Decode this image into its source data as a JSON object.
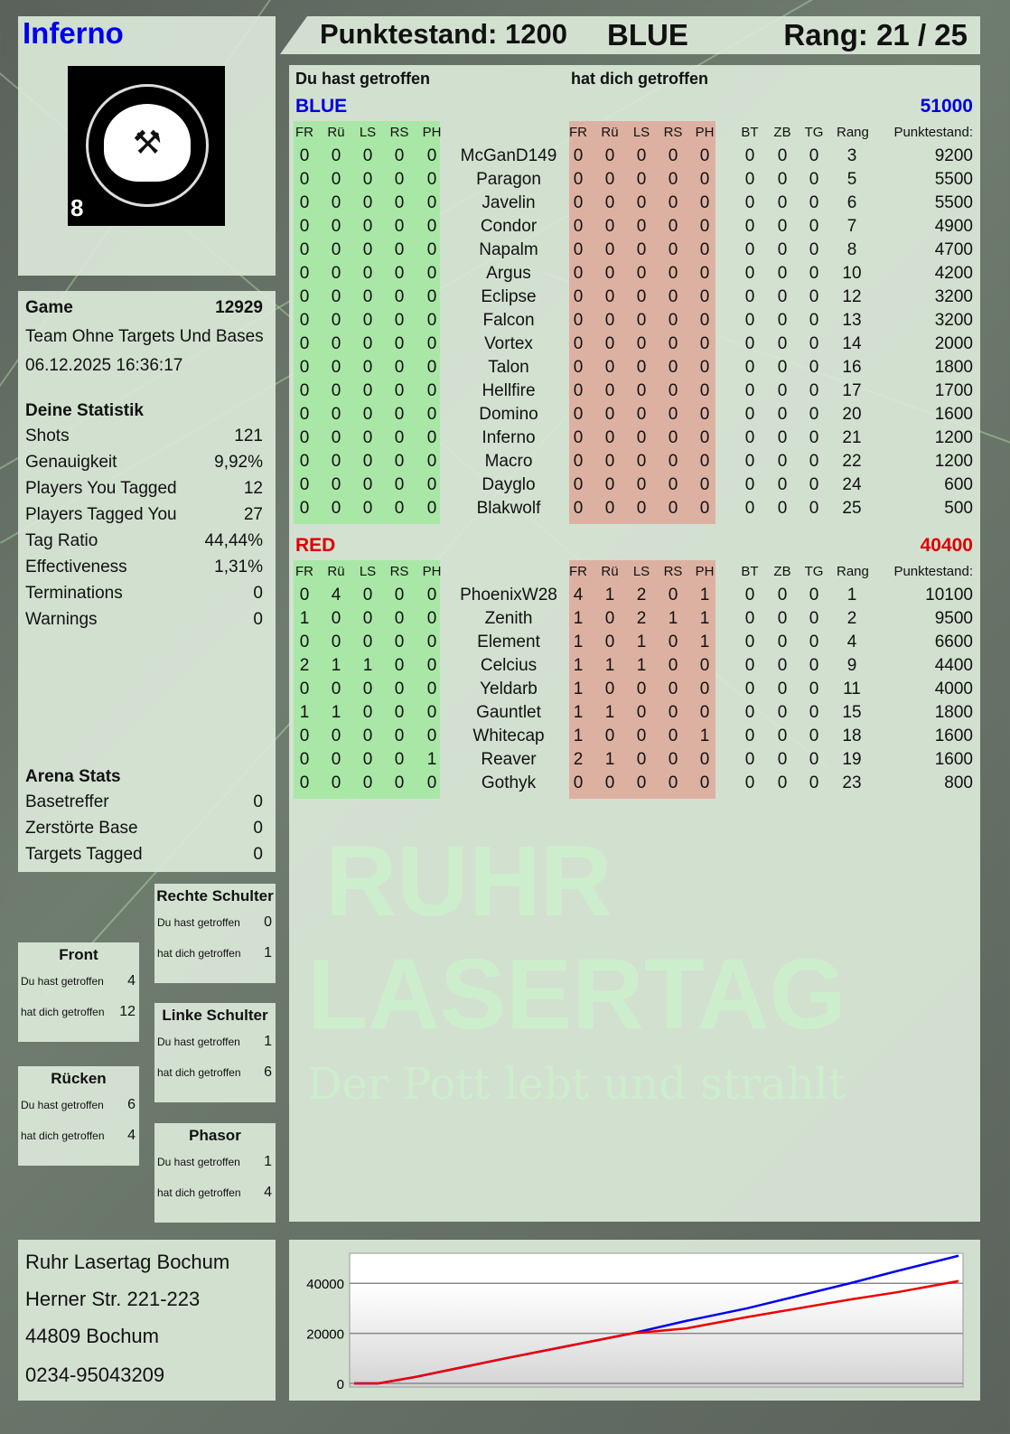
{
  "player": {
    "name": "Inferno",
    "logo_text": "RUHR LASERTAG",
    "logo_number": "8"
  },
  "header": {
    "score": "Punktestand: 1200",
    "team": "BLUE",
    "rank": "Rang: 21 / 25"
  },
  "table": {
    "you_hit": "Du hast getroffen",
    "hit_you": "hat dich getroffen",
    "hit_cols": [
      "FR",
      "Rü",
      "LS",
      "RS",
      "PH"
    ],
    "stat_cols": [
      "BT",
      "ZB",
      "TG",
      "Rang",
      "Punktestand:"
    ],
    "colors": {
      "green": "#9fe89b",
      "red": "#e0a596",
      "blue": "#0000dd",
      "red_team": "#dd0000"
    },
    "teams": [
      {
        "name": "BLUE",
        "total": "51000",
        "rows": [
          [
            "0",
            "0",
            "0",
            "0",
            "0",
            "McGanD149",
            "0",
            "0",
            "0",
            "0",
            "0",
            "0",
            "0",
            "0",
            "3",
            "9200"
          ],
          [
            "0",
            "0",
            "0",
            "0",
            "0",
            "Paragon",
            "0",
            "0",
            "0",
            "0",
            "0",
            "0",
            "0",
            "0",
            "5",
            "5500"
          ],
          [
            "0",
            "0",
            "0",
            "0",
            "0",
            "Javelin",
            "0",
            "0",
            "0",
            "0",
            "0",
            "0",
            "0",
            "0",
            "6",
            "5500"
          ],
          [
            "0",
            "0",
            "0",
            "0",
            "0",
            "Condor",
            "0",
            "0",
            "0",
            "0",
            "0",
            "0",
            "0",
            "0",
            "7",
            "4900"
          ],
          [
            "0",
            "0",
            "0",
            "0",
            "0",
            "Napalm",
            "0",
            "0",
            "0",
            "0",
            "0",
            "0",
            "0",
            "0",
            "8",
            "4700"
          ],
          [
            "0",
            "0",
            "0",
            "0",
            "0",
            "Argus",
            "0",
            "0",
            "0",
            "0",
            "0",
            "0",
            "0",
            "0",
            "10",
            "4200"
          ],
          [
            "0",
            "0",
            "0",
            "0",
            "0",
            "Eclipse",
            "0",
            "0",
            "0",
            "0",
            "0",
            "0",
            "0",
            "0",
            "12",
            "3200"
          ],
          [
            "0",
            "0",
            "0",
            "0",
            "0",
            "Falcon",
            "0",
            "0",
            "0",
            "0",
            "0",
            "0",
            "0",
            "0",
            "13",
            "3200"
          ],
          [
            "0",
            "0",
            "0",
            "0",
            "0",
            "Vortex",
            "0",
            "0",
            "0",
            "0",
            "0",
            "0",
            "0",
            "0",
            "14",
            "2000"
          ],
          [
            "0",
            "0",
            "0",
            "0",
            "0",
            "Talon",
            "0",
            "0",
            "0",
            "0",
            "0",
            "0",
            "0",
            "0",
            "16",
            "1800"
          ],
          [
            "0",
            "0",
            "0",
            "0",
            "0",
            "Hellfire",
            "0",
            "0",
            "0",
            "0",
            "0",
            "0",
            "0",
            "0",
            "17",
            "1700"
          ],
          [
            "0",
            "0",
            "0",
            "0",
            "0",
            "Domino",
            "0",
            "0",
            "0",
            "0",
            "0",
            "0",
            "0",
            "0",
            "20",
            "1600"
          ],
          [
            "0",
            "0",
            "0",
            "0",
            "0",
            "Inferno",
            "0",
            "0",
            "0",
            "0",
            "0",
            "0",
            "0",
            "0",
            "21",
            "1200"
          ],
          [
            "0",
            "0",
            "0",
            "0",
            "0",
            "Macro",
            "0",
            "0",
            "0",
            "0",
            "0",
            "0",
            "0",
            "0",
            "22",
            "1200"
          ],
          [
            "0",
            "0",
            "0",
            "0",
            "0",
            "Dayglo",
            "0",
            "0",
            "0",
            "0",
            "0",
            "0",
            "0",
            "0",
            "24",
            "600"
          ],
          [
            "0",
            "0",
            "0",
            "0",
            "0",
            "Blakwolf",
            "0",
            "0",
            "0",
            "0",
            "0",
            "0",
            "0",
            "0",
            "25",
            "500"
          ]
        ]
      },
      {
        "name": "RED",
        "total": "40400",
        "rows": [
          [
            "0",
            "4",
            "0",
            "0",
            "0",
            "PhoenixW28",
            "4",
            "1",
            "2",
            "0",
            "1",
            "0",
            "0",
            "0",
            "1",
            "10100"
          ],
          [
            "1",
            "0",
            "0",
            "0",
            "0",
            "Zenith",
            "1",
            "0",
            "2",
            "1",
            "1",
            "0",
            "0",
            "0",
            "2",
            "9500"
          ],
          [
            "0",
            "0",
            "0",
            "0",
            "0",
            "Element",
            "1",
            "0",
            "1",
            "0",
            "1",
            "0",
            "0",
            "0",
            "4",
            "6600"
          ],
          [
            "2",
            "1",
            "1",
            "0",
            "0",
            "Celcius",
            "1",
            "1",
            "1",
            "0",
            "0",
            "0",
            "0",
            "0",
            "9",
            "4400"
          ],
          [
            "0",
            "0",
            "0",
            "0",
            "0",
            "Yeldarb",
            "1",
            "0",
            "0",
            "0",
            "0",
            "0",
            "0",
            "0",
            "11",
            "4000"
          ],
          [
            "1",
            "1",
            "0",
            "0",
            "0",
            "Gauntlet",
            "1",
            "1",
            "0",
            "0",
            "0",
            "0",
            "0",
            "0",
            "15",
            "1800"
          ],
          [
            "0",
            "0",
            "0",
            "0",
            "0",
            "Whitecap",
            "1",
            "0",
            "0",
            "0",
            "1",
            "0",
            "0",
            "0",
            "18",
            "1600"
          ],
          [
            "0",
            "0",
            "0",
            "0",
            "1",
            "Reaver",
            "2",
            "1",
            "0",
            "0",
            "0",
            "0",
            "0",
            "0",
            "19",
            "1600"
          ],
          [
            "0",
            "0",
            "0",
            "0",
            "0",
            "Gothyk",
            "0",
            "0",
            "0",
            "0",
            "0",
            "0",
            "0",
            "0",
            "23",
            "800"
          ]
        ]
      }
    ]
  },
  "game": {
    "label": "Game",
    "id": "12929",
    "mode": "Team Ohne Targets Und Bases",
    "datetime": "06.12.2025 16:36:17"
  },
  "stats": {
    "title": "Deine Statistik",
    "items": [
      {
        "label": "Shots",
        "value": "121"
      },
      {
        "label": "Genauigkeit",
        "value": "9,92%"
      },
      {
        "label": "Players You Tagged",
        "value": "12"
      },
      {
        "label": "Players Tagged You",
        "value": "27"
      },
      {
        "label": "Tag Ratio",
        "value": "44,44%"
      },
      {
        "label": "Effectiveness",
        "value": "1,31%"
      },
      {
        "label": "Terminations",
        "value": "0"
      },
      {
        "label": "Warnings",
        "value": "0"
      }
    ]
  },
  "arena": {
    "title": "Arena Stats",
    "items": [
      {
        "label": "Basetreffer",
        "value": "0"
      },
      {
        "label": "Zerstörte Base",
        "value": "0"
      },
      {
        "label": "Targets Tagged",
        "value": "0"
      }
    ]
  },
  "zones": [
    {
      "title": "Rechte Schulter",
      "you_hit_label": "Du hast getroffen",
      "you_hit": "0",
      "hit_you_label": "hat dich getroffen",
      "hit_you": "1"
    },
    {
      "title": "Front",
      "you_hit_label": "Du hast getroffen",
      "you_hit": "4",
      "hit_you_label": "hat dich getroffen",
      "hit_you": "12"
    },
    {
      "title": "Linke Schulter",
      "you_hit_label": "Du hast getroffen",
      "you_hit": "1",
      "hit_you_label": "hat dich getroffen",
      "hit_you": "6"
    },
    {
      "title": "Rücken",
      "you_hit_label": "Du hast getroffen",
      "you_hit": "6",
      "hit_you_label": "hat dich getroffen",
      "hit_you": "4"
    },
    {
      "title": "Phasor",
      "you_hit_label": "Du hast getroffen",
      "you_hit": "1",
      "hit_you_label": "hat dich getroffen",
      "hit_you": "4"
    }
  ],
  "address": [
    "Ruhr Lasertag Bochum",
    "Herner Str. 221-223",
    "44809 Bochum",
    "0234-95043209"
  ],
  "watermark": {
    "line1": "RUHR",
    "line2": "LASERTAG",
    "slogan": "Der Pott lebt und strahlt"
  },
  "chart_data": {
    "type": "line",
    "ylim": [
      0,
      52000
    ],
    "yticks": [
      "0",
      "20000",
      "40000"
    ],
    "grid": true,
    "x": [
      0,
      0.04,
      0.1,
      0.25,
      0.46,
      0.55,
      0.65,
      0.82,
      0.9,
      1.0
    ],
    "series": [
      {
        "color": "#0000ee",
        "values": [
          0,
          0,
          2500,
          10000,
          20000,
          25000,
          30000,
          40000,
          45000,
          51000
        ]
      },
      {
        "color": "#ee0000",
        "values": [
          0,
          0,
          2500,
          10000,
          20000,
          22000,
          26500,
          33500,
          36500,
          40900
        ]
      }
    ]
  }
}
